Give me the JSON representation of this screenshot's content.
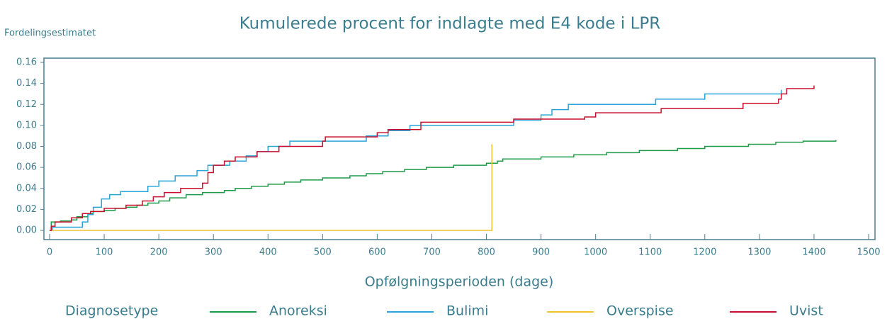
{
  "chart_data": {
    "type": "line",
    "step": true,
    "title": "Kumulerede procent for indlagte med E4 kode i LPR",
    "ylabel": "Fordelingsestimatet",
    "xlabel": "Opfølgningsperioden (dage)",
    "legend_title": "Diagnosetype",
    "legend": "bottom",
    "xlim": [
      0,
      1500
    ],
    "xticks": [
      0,
      100,
      200,
      300,
      400,
      500,
      600,
      700,
      800,
      900,
      1000,
      1100,
      1200,
      1300,
      1400,
      1500
    ],
    "ylim": [
      0,
      0.16
    ],
    "yticks": [
      {
        "value": 0,
        "label": "0.00"
      },
      {
        "value": 0.02,
        "label": "0.02"
      },
      {
        "value": 0.04,
        "label": "0.04"
      },
      {
        "value": 0.06,
        "label": "0.06"
      },
      {
        "value": 0.08,
        "label": "0.08"
      },
      {
        "value": 0.1,
        "label": "0.10"
      },
      {
        "value": 0.12,
        "label": "0.12"
      },
      {
        "value": 0.14,
        "label": "0.14"
      },
      {
        "value": 0.16,
        "label": "0.16"
      }
    ],
    "series": [
      {
        "name": "Anoreksi",
        "color": "#1e9a48",
        "x": [
          0,
          3,
          20,
          40,
          50,
          70,
          80,
          100,
          120,
          140,
          160,
          180,
          200,
          220,
          250,
          280,
          320,
          340,
          370,
          400,
          430,
          460,
          500,
          550,
          580,
          610,
          650,
          690,
          740,
          800,
          820,
          830,
          900,
          960,
          1020,
          1080,
          1150,
          1200,
          1280,
          1330,
          1380,
          1440
        ],
        "values": [
          0,
          0.008,
          0.009,
          0.01,
          0.013,
          0.016,
          0.018,
          0.019,
          0.021,
          0.022,
          0.024,
          0.026,
          0.028,
          0.031,
          0.034,
          0.036,
          0.038,
          0.04,
          0.042,
          0.044,
          0.046,
          0.048,
          0.05,
          0.052,
          0.054,
          0.056,
          0.058,
          0.06,
          0.062,
          0.064,
          0.066,
          0.068,
          0.07,
          0.072,
          0.074,
          0.076,
          0.078,
          0.08,
          0.082,
          0.084,
          0.085,
          0.086
        ]
      },
      {
        "name": "Bulimi",
        "color": "#2ba5d8",
        "x": [
          0,
          5,
          60,
          70,
          80,
          95,
          110,
          130,
          180,
          200,
          230,
          270,
          290,
          330,
          360,
          380,
          400,
          440,
          580,
          620,
          660,
          850,
          900,
          920,
          950,
          1110,
          1200,
          1340
        ],
        "values": [
          0,
          0.003,
          0.008,
          0.015,
          0.022,
          0.03,
          0.034,
          0.037,
          0.042,
          0.047,
          0.052,
          0.057,
          0.062,
          0.066,
          0.071,
          0.075,
          0.08,
          0.085,
          0.09,
          0.095,
          0.1,
          0.105,
          0.11,
          0.115,
          0.12,
          0.125,
          0.13,
          0.134
        ]
      },
      {
        "name": "Overspise",
        "color": "#f2c230",
        "x": [
          0,
          810,
          810
        ],
        "values": [
          0,
          0,
          0.082
        ]
      },
      {
        "name": "Uvist",
        "color": "#c8102e",
        "x": [
          0,
          3,
          10,
          40,
          60,
          75,
          100,
          140,
          170,
          190,
          210,
          240,
          280,
          290,
          300,
          320,
          340,
          380,
          420,
          500,
          505,
          600,
          620,
          680,
          850,
          980,
          1000,
          1120,
          1270,
          1335,
          1340,
          1350,
          1400
        ],
        "values": [
          0,
          0.004,
          0.008,
          0.012,
          0.016,
          0.018,
          0.021,
          0.024,
          0.028,
          0.032,
          0.036,
          0.04,
          0.045,
          0.055,
          0.062,
          0.066,
          0.07,
          0.075,
          0.08,
          0.085,
          0.089,
          0.093,
          0.096,
          0.103,
          0.106,
          0.108,
          0.112,
          0.116,
          0.121,
          0.125,
          0.13,
          0.135,
          0.138
        ]
      }
    ]
  }
}
